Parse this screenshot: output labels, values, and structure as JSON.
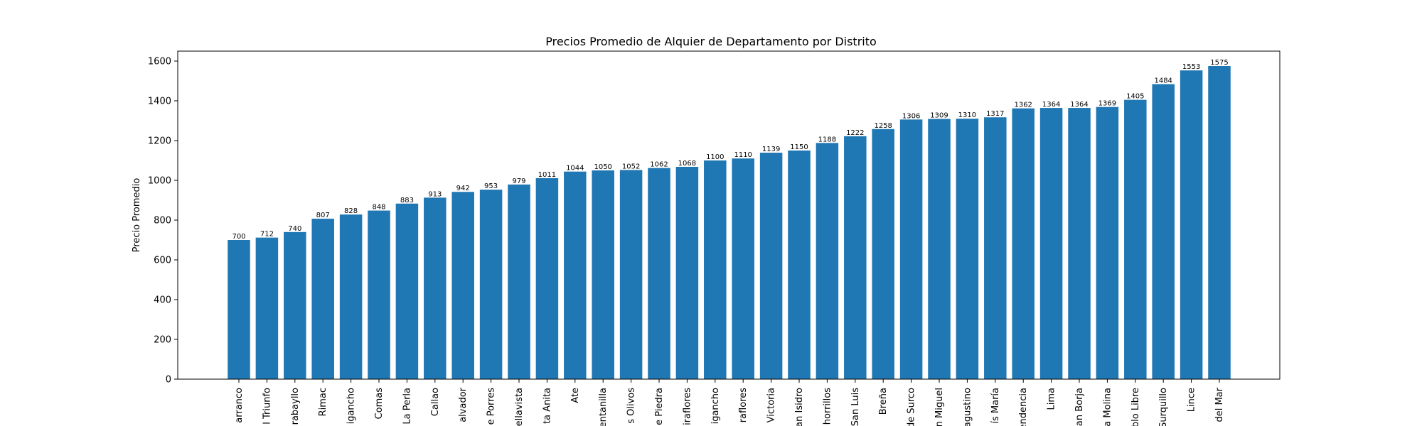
{
  "chart_data": {
    "type": "bar",
    "title": "Precios Promedio de Alquier de Departamento por Distrito",
    "xlabel": "",
    "ylabel": "Precio Promedio",
    "ylim": [
      0,
      1650
    ],
    "yticks": [
      0,
      200,
      400,
      600,
      800,
      1000,
      1200,
      1400,
      1600
    ],
    "grid": false,
    "bar_color": "#1f77b4",
    "categories": [
      "arranco",
      "l Triunfo",
      "rabayllo",
      "Rimac",
      "igancho",
      "Comas",
      "La Perla",
      "Callao",
      "alvador",
      "e Porres",
      "ellavista",
      "ta Anita",
      "Ate",
      "entanilla",
      "s Olivos",
      "e Piedra",
      "iraflores",
      "igancho",
      "raflores",
      "Victoria",
      "an Isidro",
      "horrillos",
      "San Luis",
      "Breña",
      "de Surco",
      "n Miguel",
      "agustino",
      "ís María",
      "endencia",
      "Lima",
      "an Borja",
      "a Molina",
      "blo Libre",
      "Surquillo",
      "Lince",
      "del Mar"
    ],
    "values": [
      700,
      712,
      740,
      807,
      828,
      848,
      883,
      913,
      942,
      953,
      979,
      1011,
      1044,
      1050,
      1052,
      1062,
      1068,
      1100,
      1110,
      1139,
      1150,
      1188,
      1222,
      1258,
      1306,
      1309,
      1310,
      1317,
      1362,
      1364,
      1364,
      1369,
      1405,
      1484,
      1553,
      1575
    ]
  }
}
